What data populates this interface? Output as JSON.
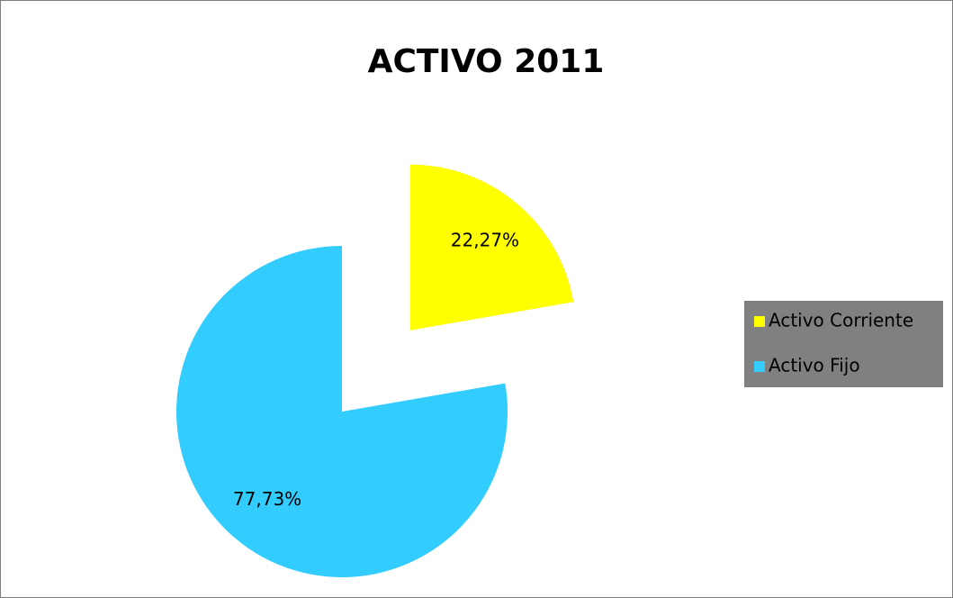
{
  "chart_data": {
    "type": "pie",
    "title": "ACTIVO 2011",
    "categories": [
      "Activo Corriente",
      "Activo Fijo"
    ],
    "values": [
      22.27,
      77.73
    ],
    "value_labels": [
      "22,27%",
      "77,73%"
    ],
    "colors": [
      "#ffff00",
      "#33ccff"
    ],
    "legend": "right"
  }
}
